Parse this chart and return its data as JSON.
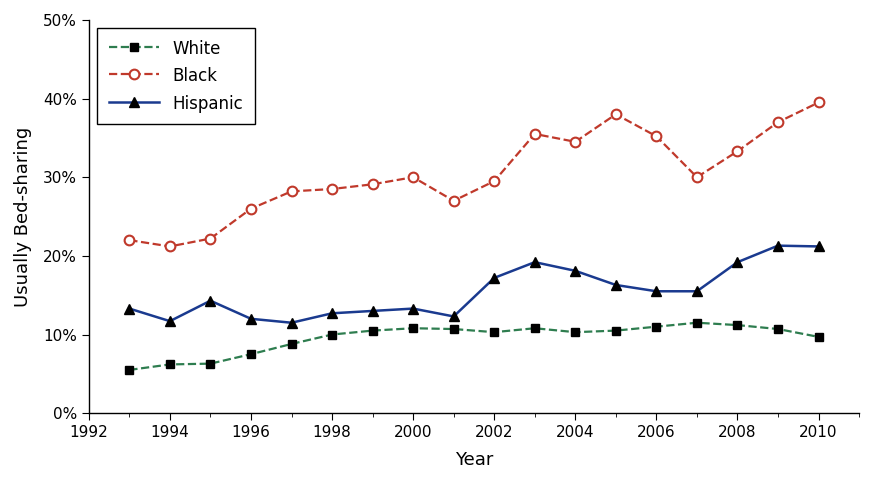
{
  "title": "",
  "xlabel": "Year",
  "ylabel": "Usually Bed-sharing",
  "xlim": [
    1992,
    2011
  ],
  "ylim": [
    0,
    0.5
  ],
  "yticks": [
    0,
    0.1,
    0.2,
    0.3,
    0.4,
    0.5
  ],
  "xticks": [
    1992,
    1994,
    1996,
    1998,
    2000,
    2002,
    2004,
    2006,
    2008,
    2010
  ],
  "white": {
    "years": [
      1993,
      1994,
      1995,
      1996,
      1997,
      1998,
      1999,
      2000,
      2001,
      2002,
      2003,
      2004,
      2005,
      2006,
      2007,
      2008,
      2009,
      2010
    ],
    "values": [
      0.055,
      0.062,
      0.063,
      0.075,
      0.088,
      0.1,
      0.105,
      0.108,
      0.107,
      0.103,
      0.108,
      0.103,
      0.105,
      0.11,
      0.115,
      0.112,
      0.107,
      0.097
    ],
    "line_color": "#2e7d4f",
    "marker_color": "#000000",
    "marker": "s",
    "linestyle": "--",
    "label": "White"
  },
  "black": {
    "years": [
      1993,
      1994,
      1995,
      1996,
      1997,
      1998,
      1999,
      2000,
      2001,
      2002,
      2003,
      2004,
      2005,
      2006,
      2007,
      2008,
      2009,
      2010
    ],
    "values": [
      0.22,
      0.212,
      0.222,
      0.26,
      0.282,
      0.285,
      0.291,
      0.3,
      0.27,
      0.295,
      0.355,
      0.345,
      0.38,
      0.352,
      0.3,
      0.333,
      0.37,
      0.395
    ],
    "line_color": "#c0392b",
    "marker": "o",
    "linestyle": "--",
    "label": "Black"
  },
  "hispanic": {
    "years": [
      1993,
      1994,
      1995,
      1996,
      1997,
      1998,
      1999,
      2000,
      2001,
      2002,
      2003,
      2004,
      2005,
      2006,
      2007,
      2008,
      2009,
      2010
    ],
    "values": [
      0.133,
      0.117,
      0.143,
      0.12,
      0.115,
      0.127,
      0.13,
      0.133,
      0.123,
      0.172,
      0.192,
      0.181,
      0.163,
      0.155,
      0.155,
      0.192,
      0.213,
      0.212
    ],
    "line_color": "#1a3a8f",
    "marker_color": "#000000",
    "marker": "^",
    "linestyle": "-",
    "label": "Hispanic"
  },
  "bg_color": "#ffffff",
  "font_family": "DejaVu Sans"
}
